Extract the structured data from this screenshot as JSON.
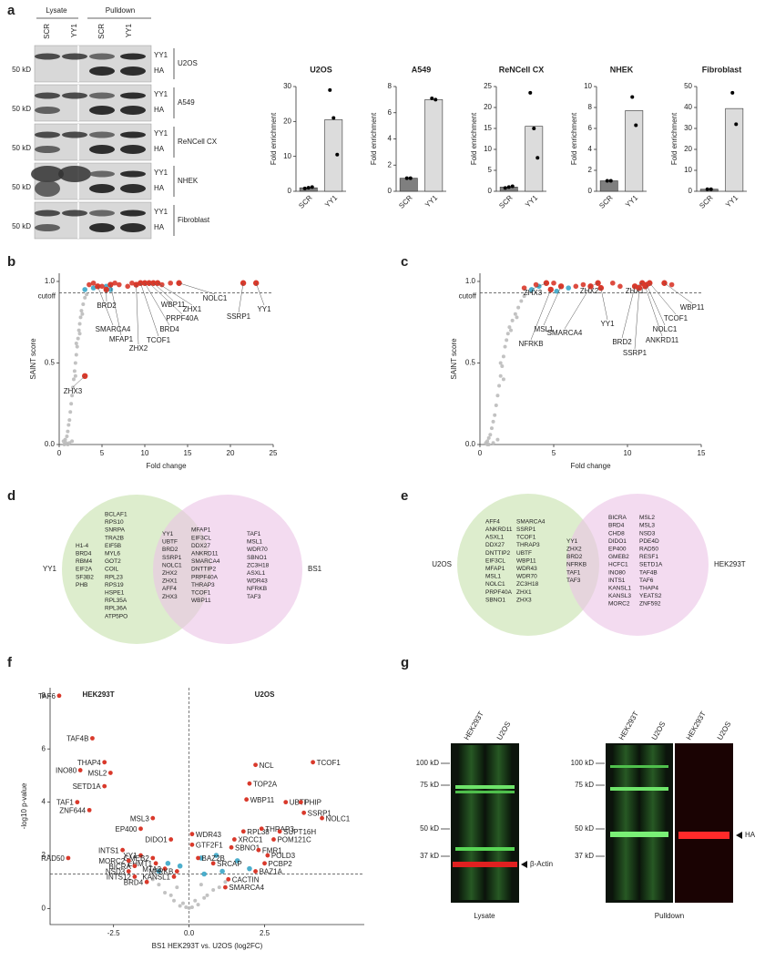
{
  "panel_labels": [
    "a",
    "b",
    "c",
    "d",
    "e",
    "f",
    "g"
  ],
  "blot_a": {
    "groups": [
      "Lysate",
      "Pulldown"
    ],
    "lanes": [
      "SCR",
      "YY1",
      "SCR",
      "YY1"
    ],
    "rows": [
      "U2OS",
      "A549",
      "ReNCell CX",
      "NHEK",
      "Fibroblast"
    ],
    "bands": [
      "YY1",
      "HA"
    ],
    "marker": "50 kD"
  },
  "chart_data": [
    {
      "type": "bar",
      "title": "U2OS",
      "ylabel": "Fold enrichment",
      "categories": [
        "SCR",
        "YY1"
      ],
      "values": [
        1,
        20.5
      ],
      "colors": [
        "#7f7f7f",
        "#dcdcdc"
      ],
      "points": [
        [
          0.8,
          1,
          1.2
        ],
        [
          29,
          21,
          10.5
        ]
      ],
      "ylim": [
        0,
        30
      ],
      "yticks": [
        0,
        10,
        20,
        30
      ]
    },
    {
      "type": "bar",
      "title": "A549",
      "ylabel": "Fold enrichment",
      "categories": [
        "SCR",
        "YY1"
      ],
      "values": [
        1,
        7
      ],
      "colors": [
        "#7f7f7f",
        "#dcdcdc"
      ],
      "points": [
        [
          1,
          1
        ],
        [
          7.1,
          7
        ]
      ],
      "ylim": [
        0,
        8
      ],
      "yticks": [
        0,
        2,
        4,
        6,
        8
      ]
    },
    {
      "type": "bar",
      "title": "ReNCell CX",
      "ylabel": "Fold enrichment",
      "categories": [
        "SCR",
        "YY1"
      ],
      "values": [
        1,
        15.5
      ],
      "colors": [
        "#7f7f7f",
        "#dcdcdc"
      ],
      "points": [
        [
          0.8,
          1,
          1.2
        ],
        [
          23.5,
          15,
          8
        ]
      ],
      "ylim": [
        0,
        25
      ],
      "yticks": [
        0,
        5,
        10,
        15,
        20,
        25
      ]
    },
    {
      "type": "bar",
      "title": "NHEK",
      "ylabel": "Fold enrichment",
      "categories": [
        "SCR",
        "YY1"
      ],
      "values": [
        1,
        7.7
      ],
      "colors": [
        "#7f7f7f",
        "#dcdcdc"
      ],
      "points": [
        [
          1,
          1
        ],
        [
          9,
          6.3
        ]
      ],
      "ylim": [
        0,
        10
      ],
      "yticks": [
        0,
        2,
        4,
        6,
        8,
        10
      ]
    },
    {
      "type": "bar",
      "title": "Fibroblast",
      "ylabel": "Fold enrichment",
      "categories": [
        "SCR",
        "YY1"
      ],
      "values": [
        1,
        39.5
      ],
      "colors": [
        "#7f7f7f",
        "#dcdcdc"
      ],
      "points": [
        [
          1,
          1
        ],
        [
          47,
          32
        ]
      ],
      "ylim": [
        0,
        50
      ],
      "yticks": [
        0,
        10,
        20,
        30,
        40,
        50
      ]
    },
    {
      "type": "scatter",
      "xlabel": "Fold change",
      "ylabel": "SAINT score",
      "xlim": [
        0,
        25
      ],
      "ylim": [
        0,
        1.05
      ],
      "xticks": [
        0,
        5,
        10,
        15,
        20,
        25
      ],
      "yticks": [
        {
          "value": 0,
          "label": "0.0"
        },
        {
          "value": 0.5,
          "label": "0.5"
        },
        {
          "value": 1,
          "label": "1.0"
        }
      ],
      "cutoff": {
        "label": "cutoff",
        "value": 0.93
      },
      "series": [
        {
          "color": "#bbbbbb",
          "x": [
            0.5,
            0.7,
            0.9,
            1.0,
            1.1,
            1.2,
            1.3,
            1.4,
            1.5,
            1.6,
            1.7,
            1.8,
            1.9,
            2.0,
            2.1,
            2.2,
            2.3,
            2.4,
            2.5,
            2.6,
            2.8,
            3.0,
            3.2,
            0.8,
            1.2,
            0.6,
            1.0,
            1.5,
            2.0,
            2.4,
            1.9,
            2.7
          ],
          "y": [
            0.02,
            0.03,
            0.05,
            0.08,
            0.12,
            0.15,
            0.2,
            0.25,
            0.3,
            0.35,
            0.4,
            0.45,
            0.5,
            0.55,
            0.6,
            0.65,
            0.7,
            0.74,
            0.78,
            0.82,
            0.86,
            0.9,
            0.92,
            0.01,
            0.01,
            0,
            0,
            0.02,
            0.62,
            0.68,
            0.42,
            0.8
          ]
        },
        {
          "color": "#3aa6c8",
          "x": [
            4,
            5.5,
            6,
            3
          ],
          "y": [
            0.96,
            0.97,
            0.95,
            0.95
          ]
        },
        {
          "color": "#d9392b",
          "x": [
            3.5,
            4,
            5,
            6.5,
            7,
            8,
            8.5,
            12,
            13
          ],
          "y": [
            0.98,
            0.99,
            0.97,
            0.99,
            0.98,
            0.97,
            0.99,
            0.98,
            0.99
          ]
        }
      ],
      "labeled": [
        {
          "label": "YY1",
          "x": 23,
          "y": 0.99,
          "text_color": "#d9392b"
        },
        {
          "label": "SSRP1",
          "x": 21.5,
          "y": 0.99
        },
        {
          "label": "NOLC1",
          "x": 14,
          "y": 0.99
        },
        {
          "label": "ZHX1",
          "x": 11.5,
          "y": 0.99
        },
        {
          "label": "WBP11",
          "x": 11,
          "y": 0.99
        },
        {
          "label": "PRPF40A",
          "x": 10.5,
          "y": 0.99
        },
        {
          "label": "BRD4",
          "x": 10,
          "y": 0.99
        },
        {
          "label": "TCOF1",
          "x": 9.5,
          "y": 0.99
        },
        {
          "label": "ZHX2",
          "x": 9,
          "y": 0.98
        },
        {
          "label": "MFAP1",
          "x": 6,
          "y": 0.98
        },
        {
          "label": "SMARCA4",
          "x": 4.5,
          "y": 0.97
        },
        {
          "label": "BRD2",
          "x": 5.5,
          "y": 0.95
        },
        {
          "label": "ZHX3",
          "x": 3,
          "y": 0.42
        }
      ],
      "point_color": "#d9392b"
    },
    {
      "type": "scatter",
      "xlabel": "Fold change",
      "ylabel": "SAINT score",
      "xlim": [
        0,
        15
      ],
      "ylim": [
        0,
        1.05
      ],
      "xticks": [
        0,
        5,
        10,
        15
      ],
      "yticks": [
        {
          "value": 0,
          "label": "0.0"
        },
        {
          "value": 0.5,
          "label": "0.5"
        },
        {
          "value": 1,
          "label": "1.0"
        }
      ],
      "cutoff": {
        "label": "cutoff",
        "value": 0.93
      },
      "series": [
        {
          "color": "#bbbbbb",
          "x": [
            0.4,
            0.5,
            0.6,
            0.7,
            0.8,
            0.9,
            1.0,
            1.1,
            1.2,
            1.3,
            1.4,
            1.5,
            1.6,
            1.7,
            1.8,
            1.9,
            2.0,
            2.2,
            2.4,
            2.6,
            2.8,
            3.0,
            0.6,
            0.9,
            0.5,
            1.2,
            1.6,
            2.1,
            2.5,
            1.4
          ],
          "y": [
            0.01,
            0.02,
            0.04,
            0.06,
            0.1,
            0.14,
            0.18,
            0.24,
            0.3,
            0.36,
            0.42,
            0.48,
            0.54,
            0.6,
            0.64,
            0.68,
            0.72,
            0.76,
            0.8,
            0.84,
            0.88,
            0.91,
            0,
            0.01,
            0,
            0.03,
            0.4,
            0.7,
            0.78,
            0.5
          ]
        },
        {
          "color": "#3aa6c8",
          "x": [
            3.5,
            4,
            5.2,
            6
          ],
          "y": [
            0.95,
            0.97,
            0.94,
            0.96
          ]
        },
        {
          "color": "#d9392b",
          "x": [
            3,
            3.8,
            5,
            6.5,
            7,
            9,
            9.5,
            13
          ],
          "y": [
            0.96,
            0.98,
            0.99,
            0.97,
            0.98,
            0.99,
            0.97,
            0.98
          ]
        }
      ],
      "labeled": [
        {
          "label": "ZHX3",
          "x": 4.5,
          "y": 0.99
        },
        {
          "label": "MSL1",
          "x": 5.5,
          "y": 0.97
        },
        {
          "label": "NFRKB",
          "x": 4.8,
          "y": 0.95
        },
        {
          "label": "ZHX2",
          "x": 8,
          "y": 0.99
        },
        {
          "label": "SMARCA4",
          "x": 7.5,
          "y": 0.97
        },
        {
          "label": "YY1",
          "x": 8.2,
          "y": 0.96,
          "text_color": "#d9392b"
        },
        {
          "label": "ZHX1",
          "x": 11,
          "y": 0.99
        },
        {
          "label": "BRD2",
          "x": 10.5,
          "y": 0.97
        },
        {
          "label": "SSRP1",
          "x": 10.8,
          "y": 0.96
        },
        {
          "label": "ANKRD11",
          "x": 11.2,
          "y": 0.97
        },
        {
          "label": "NOLC1",
          "x": 11.3,
          "y": 0.98
        },
        {
          "label": "TCOF1",
          "x": 11.5,
          "y": 0.99
        },
        {
          "label": "WBP11",
          "x": 12.5,
          "y": 0.99
        }
      ],
      "point_color": "#d9392b"
    },
    {
      "type": "volcano",
      "xlabel": "BS1 HEK293T vs. U2OS (log2FC)",
      "ylabel": "-log10 p-value",
      "group_labels": [
        "HEK293T",
        "U2OS"
      ],
      "xlim": [
        -4.6,
        5.8
      ],
      "ylim": [
        -0.6,
        8.3
      ],
      "xticks": [
        -2.5,
        {
          "value": 0,
          "label": "0.0"
        },
        2.5
      ],
      "yticks": [
        0,
        2,
        4,
        6,
        8
      ],
      "cutoff": {
        "value": 1.3
      },
      "vline": 0,
      "series": [
        {
          "color": "#bbbbbb",
          "x": [
            -0.5,
            -0.3,
            -0.1,
            0.1,
            0.3,
            0.5,
            -0.8,
            0.8,
            -1,
            1,
            -0.2,
            0.2,
            0.6,
            -0.6,
            1.2,
            -1.2,
            0,
            0.4,
            -0.4
          ],
          "y": [
            0.3,
            0.1,
            0.05,
            0.05,
            0.15,
            0.4,
            0.6,
            0.7,
            0.9,
            0.8,
            0.2,
            0.3,
            0.5,
            0.5,
            1.0,
            1.1,
            0.02,
            0.9,
            0.8
          ]
        },
        {
          "color": "#3aa6c8",
          "x": [
            -0.3,
            0.4,
            0.9,
            1.1,
            -0.7,
            1.6,
            2.0,
            -1.0,
            0.5
          ],
          "y": [
            1.6,
            1.9,
            2.0,
            1.4,
            1.7,
            1.8,
            1.5,
            1.4,
            1.3
          ]
        }
      ],
      "labeled": [
        {
          "label": "TAF6",
          "x": -4.3,
          "y": 8
        },
        {
          "label": "TAF4B",
          "x": -3.2,
          "y": 6.4
        },
        {
          "label": "THAP4",
          "x": -2.8,
          "y": 5.5
        },
        {
          "label": "INO80",
          "x": -3.6,
          "y": 5.2
        },
        {
          "label": "MSL2",
          "x": -2.6,
          "y": 5.1
        },
        {
          "label": "SETD1A",
          "x": -2.8,
          "y": 4.6
        },
        {
          "label": "TAF1",
          "x": -3.7,
          "y": 4.0
        },
        {
          "label": "ZNF644",
          "x": -3.3,
          "y": 3.7
        },
        {
          "label": "MSL3",
          "x": -1.2,
          "y": 3.4
        },
        {
          "label": "EP400",
          "x": -1.6,
          "y": 3.0
        },
        {
          "label": "NCL",
          "x": 2.2,
          "y": 5.4
        },
        {
          "label": "TOP2A",
          "x": 2.0,
          "y": 4.7
        },
        {
          "label": "TCOF1",
          "x": 4.1,
          "y": 5.5
        },
        {
          "label": "WBP11",
          "x": 1.9,
          "y": 4.1
        },
        {
          "label": "UBTF",
          "x": 3.2,
          "y": 4.0
        },
        {
          "label": "PHIP",
          "x": 3.7,
          "y": 4.0
        },
        {
          "label": "SSRP1",
          "x": 3.8,
          "y": 3.6
        },
        {
          "label": "NOLC1",
          "x": 4.4,
          "y": 3.4
        },
        {
          "label": "RPL38",
          "x": 1.8,
          "y": 2.9
        },
        {
          "label": "THRAP3",
          "x": 2.4,
          "y": 3.0
        },
        {
          "label": "SUPT16H",
          "x": 3.0,
          "y": 2.9
        },
        {
          "label": "POM121C",
          "x": 2.8,
          "y": 2.6
        },
        {
          "label": "XRCC1",
          "x": 1.5,
          "y": 2.6
        },
        {
          "label": "SBNO1",
          "x": 1.4,
          "y": 2.3
        },
        {
          "label": "WDR43",
          "x": 0.1,
          "y": 2.8
        },
        {
          "label": "DIDO1",
          "x": -0.6,
          "y": 2.6
        },
        {
          "label": "GTF2F1",
          "x": 0.1,
          "y": 2.4
        },
        {
          "label": "FMR1",
          "x": 2.3,
          "y": 2.2
        },
        {
          "label": "POLD3",
          "x": 2.6,
          "y": 2.0
        },
        {
          "label": "PCBP2",
          "x": 2.5,
          "y": 1.7
        },
        {
          "label": "BAZ2B",
          "x": 0.3,
          "y": 1.9
        },
        {
          "label": "SRCAP",
          "x": 0.8,
          "y": 1.7
        },
        {
          "label": "BAZ1A",
          "x": 2.2,
          "y": 1.4
        },
        {
          "label": "CACTIN",
          "x": 1.3,
          "y": 1.1
        },
        {
          "label": "SMARCA4",
          "x": 1.2,
          "y": 0.8
        },
        {
          "label": "INTS1",
          "x": -2.2,
          "y": 2.2
        },
        {
          "label": "YY1",
          "x": -1.6,
          "y": 2.0
        },
        {
          "label": "GMEB2",
          "x": -1.2,
          "y": 1.9
        },
        {
          "label": "EHMT1",
          "x": -1.1,
          "y": 1.7
        },
        {
          "label": "MTA3",
          "x": -0.8,
          "y": 1.5
        },
        {
          "label": "NFRKB",
          "x": -0.4,
          "y": 1.4
        },
        {
          "label": "MORC2",
          "x": -2.0,
          "y": 1.8
        },
        {
          "label": "BICRA",
          "x": -1.8,
          "y": 1.6
        },
        {
          "label": "NSD3",
          "x": -2.0,
          "y": 1.4
        },
        {
          "label": "INTS12",
          "x": -1.8,
          "y": 1.2
        },
        {
          "label": "BRD4",
          "x": -1.4,
          "y": 1.0
        },
        {
          "label": "KANSL1",
          "x": -0.5,
          "y": 1.2
        },
        {
          "label": "RAD50",
          "x": -4.0,
          "y": 1.9
        }
      ],
      "point_color": "#d9392b"
    }
  ],
  "venn_d": {
    "left": {
      "label": "YY1",
      "columns": [
        [
          "H1-4",
          "BRD4",
          "RBM4",
          "EIF2A",
          "SF3B2",
          "PHB"
        ],
        [
          "BCLAF1",
          "RPS10",
          "SNRPA",
          "TRA2B",
          "EIF5B",
          "MYL6",
          "GOT2",
          "COIL",
          "RPL23",
          "RPS19",
          "HSPE1",
          "RPL35A",
          "RPL36A",
          "ATP5PO"
        ]
      ]
    },
    "overlap": {
      "columns": [
        [
          "YY1",
          "UBTF",
          "BRD2",
          "SSRP1",
          "NOLC1",
          "ZHX2",
          "ZHX1",
          "AFF4",
          "ZHX3"
        ],
        [
          "MFAP1",
          "EIF3CL",
          "DDX27",
          "ANKRD11",
          "SMARCA4",
          "DNTTIP2",
          "PRPF40A",
          "THRAP3",
          "TCOF1",
          "WBP11"
        ]
      ]
    },
    "right": {
      "label": "BS1",
      "columns": [
        [
          "TAF1",
          "MSL1",
          "WDR70",
          "SBNO1",
          "ZC3H18",
          "ASXL1",
          "WDR43",
          "NFRKB",
          "TAF3"
        ]
      ]
    }
  },
  "venn_e": {
    "left": {
      "label": "U2OS",
      "columns": [
        [
          "AFF4",
          "ANKRD11",
          "ASXL1",
          "DDX27",
          "DNTTIP2",
          "EIF3CL",
          "MFAP1",
          "MSL1",
          "NOLC1",
          "PRPF40A",
          "SBNO1"
        ],
        [
          "SMARCA4",
          "SSRP1",
          "TCOF1",
          "THRAP3",
          "UBTF",
          "WBP11",
          "WDR43",
          "WDR70",
          "ZC3H18",
          "ZHX1",
          "ZHX3"
        ]
      ]
    },
    "overlap": {
      "columns": [
        [
          "YY1",
          "ZHX2",
          "BRD2",
          "NFRKB",
          "TAF1",
          "TAF3"
        ]
      ]
    },
    "right": {
      "label": "HEK293T",
      "columns": [
        [
          "BICRA",
          "BRD4",
          "CHD8",
          "DIDO1",
          "EP400",
          "GMEB2",
          "HCFC1",
          "INO80",
          "INTS1",
          "KANSL1",
          "KANSL3",
          "MORC2"
        ],
        [
          "MSL2",
          "MSL3",
          "NSD3",
          "PDE4D",
          "RAD50",
          "RESF1",
          "SETD1A",
          "TAF4B",
          "TAF6",
          "THAP4",
          "YEATS2",
          "ZNF592"
        ]
      ]
    }
  },
  "blot_g": {
    "lysate": {
      "lanes": [
        "HEK293T",
        "U2OS"
      ],
      "label": "Lysate",
      "band": "β-Actin"
    },
    "pulldown": {
      "lanes": [
        "HEK293T",
        "U2OS"
      ],
      "label": "Pulldown",
      "band": "HA"
    },
    "markers": [
      "100 kD",
      "75 kD",
      "50 kD",
      "37 kD"
    ]
  }
}
